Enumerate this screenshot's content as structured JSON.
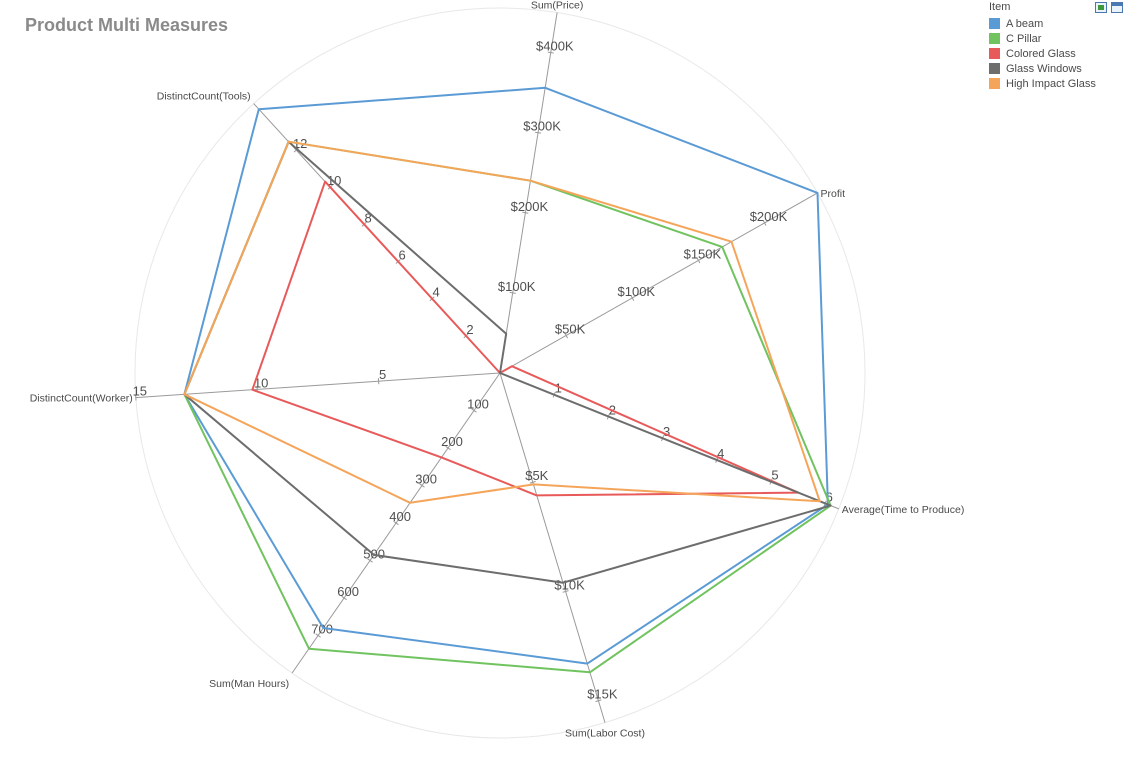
{
  "title": "Product Multi Measures",
  "legend": {
    "title": "Item",
    "position": "top-right"
  },
  "toolbar": {
    "export_icon": "export-icon",
    "window_icon": "maximize-icon"
  },
  "chart_data": {
    "type": "radar",
    "title": "Product Multi Measures",
    "grid": true,
    "axes": [
      {
        "name": "Sum(Price)",
        "max": 450000,
        "ticks": [
          100000,
          200000,
          300000,
          400000
        ],
        "tick_labels": [
          "$100K",
          "$200K",
          "$300K",
          "$400K"
        ]
      },
      {
        "name": "Profit",
        "max": 240000,
        "ticks": [
          50000,
          100000,
          150000,
          200000
        ],
        "tick_labels": [
          "$50K",
          "$100K",
          "$150K",
          "$200K"
        ]
      },
      {
        "name": "Average(Time to Produce)",
        "max": 6.25,
        "ticks": [
          1,
          2,
          3,
          4,
          5,
          6
        ],
        "tick_labels": [
          "1",
          "2",
          "3",
          "4",
          "5",
          "6"
        ]
      },
      {
        "name": "Sum(Labor Cost)",
        "max": 16000,
        "ticks": [
          5000,
          10000,
          15000
        ],
        "tick_labels": [
          "$5K",
          "$10K",
          "$15K"
        ]
      },
      {
        "name": "Sum(Man Hours)",
        "max": 800,
        "ticks": [
          100,
          200,
          300,
          400,
          500,
          600,
          700
        ],
        "tick_labels": [
          "100",
          "200",
          "300",
          "400",
          "500",
          "600",
          "700"
        ]
      },
      {
        "name": "DistinctCount(Worker)",
        "max": 15,
        "ticks": [
          5,
          10,
          15
        ],
        "tick_labels": [
          "5",
          "10",
          "15"
        ]
      },
      {
        "name": "DistinctCount(Tools)",
        "max": 14.5,
        "ticks": [
          2,
          4,
          6,
          8,
          10,
          12
        ],
        "tick_labels": [
          "2",
          "4",
          "6",
          "8",
          "10",
          "12"
        ]
      }
    ],
    "series": [
      {
        "name": "A beam",
        "color": "#5b9bd5",
        "values": [
          356000,
          240000,
          6.05,
          13300,
          680,
          13,
          14.2
        ]
      },
      {
        "name": "C Pillar",
        "color": "#70c35f",
        "values": [
          240000,
          168000,
          6.1,
          13700,
          735,
          13,
          12.45
        ]
      },
      {
        "name": "Colored Glass",
        "color": "#e85a5a",
        "values": [
          0,
          9000,
          5.5,
          5600,
          225,
          10.2,
          10.3
        ]
      },
      {
        "name": "Glass Windows",
        "color": "#6d6d6d",
        "values": [
          49000,
          0,
          6.1,
          9600,
          485,
          13,
          12.45
        ]
      },
      {
        "name": "High Impact Glass",
        "color": "#f5a55a",
        "values": [
          240000,
          175000,
          5.9,
          5100,
          346,
          13,
          12.45
        ]
      }
    ]
  }
}
